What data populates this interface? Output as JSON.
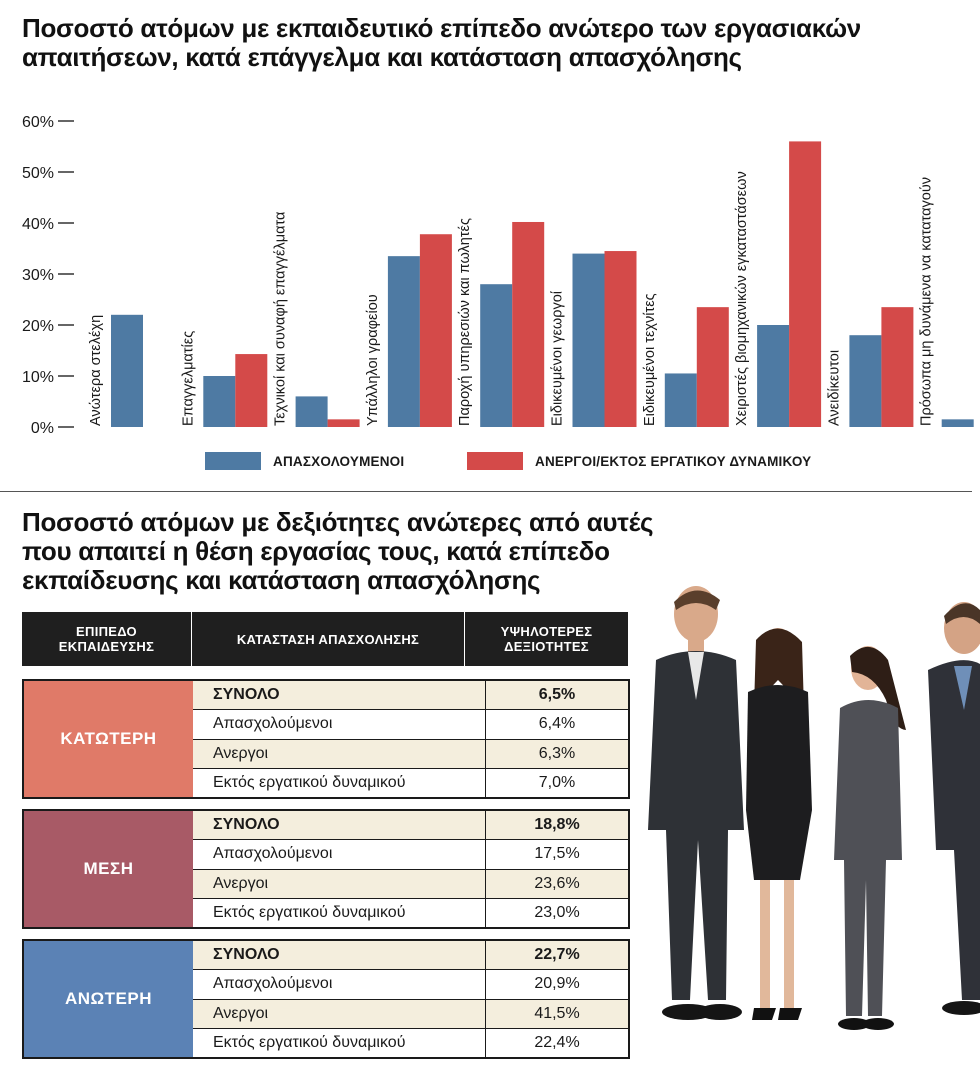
{
  "chart_data": {
    "type": "bar",
    "title": "Ποσοστό ατόμων με εκπαιδευτικό επίπεδο ανώτερο των εργασιακών\nαπαιτήσεων, κατά επάγγελμα και κατάσταση απασχόλησης",
    "categories": [
      "Ανώτερα στελέχη",
      "Επαγγελματίες",
      "Τεχνικοί και συναφή επαγγέλματα",
      "Υπάλληλοι γραφείου",
      "Παροχή υπηρεσιών και πωλητές",
      "Ειδικευμένοι γεωργοί",
      "Ειδικευμένοι τεχνίτες",
      "Χειριστές βιομηχανικών εγκαταστάσεων",
      "Ανειδίκευτοι",
      "Πρόσωπα μη δυνάμενα να καταταγούν"
    ],
    "series": [
      {
        "name": "ΑΠΑΣΧΟΛΟΥΜΕΝΟΙ",
        "color": "#4e7aa3",
        "values": [
          22,
          10,
          6,
          33.5,
          28,
          34,
          10.5,
          20,
          18,
          1.5
        ]
      },
      {
        "name": "ΑΝΕΡΓΟΙ/ΕΚΤΟΣ ΕΡΓΑΤΙΚΟΥ ΔΥΝΑΜΙΚΟΥ",
        "color": "#d44a49",
        "values": [
          null,
          14.3,
          1.5,
          37.8,
          40.2,
          34.5,
          23.5,
          56,
          23.5,
          null
        ]
      }
    ],
    "yticks": [
      "0%",
      "10%",
      "20%",
      "30%",
      "40%",
      "50%",
      "60%"
    ],
    "ylim": [
      0,
      60
    ],
    "legend": "bottom"
  },
  "table": {
    "title": "Ποσοστό ατόμων με δεξιότητες ανώτερες από αυτές\nπου απαιτεί η θέση εργασίας τους, κατά επίπεδο\nεκπαίδευσης και κατάσταση απασχόλησης",
    "headers": [
      "ΕΠΙΠΕΔΟ\nΕΚΠΑΙΔΕΥΣΗΣ",
      "ΚΑΤΑΣΤΑΣΗ ΑΠΑΣΧΟΛΗΣΗΣ",
      "ΥΨΗΛΟΤΕΡΕΣ\nΔΕΞΙΟΤΗΤΕΣ"
    ],
    "groups": [
      {
        "label": "ΚΑΤΩΤΕΡΗ",
        "color": "#e07a68",
        "rows": [
          {
            "status": "ΣΥΝΟΛΟ",
            "value": "6,5%"
          },
          {
            "status": "Απασχολούμενοι",
            "value": "6,4%"
          },
          {
            "status": "Ανεργοι",
            "value": "6,3%"
          },
          {
            "status": "Εκτός εργατικού δυναμικού",
            "value": "7,0%"
          }
        ]
      },
      {
        "label": "ΜΕΣΗ",
        "color": "#a85a66",
        "rows": [
          {
            "status": "ΣΥΝΟΛΟ",
            "value": "18,8%"
          },
          {
            "status": "Απασχολούμενοι",
            "value": "17,5%"
          },
          {
            "status": "Ανεργοι",
            "value": "23,6%"
          },
          {
            "status": "Εκτός εργατικού δυναμικού",
            "value": "23,0%"
          }
        ]
      },
      {
        "label": "ΑΝΩΤΕΡΗ",
        "color": "#5b82b5",
        "rows": [
          {
            "status": "ΣΥΝΟΛΟ",
            "value": "22,7%"
          },
          {
            "status": "Απασχολούμενοι",
            "value": "20,9%"
          },
          {
            "status": "Ανεργοι",
            "value": "41,5%"
          },
          {
            "status": "Εκτός εργατικού δυναμικού",
            "value": "22,4%"
          }
        ]
      }
    ]
  },
  "illustration": {
    "icon": "people-queue-illustration"
  }
}
